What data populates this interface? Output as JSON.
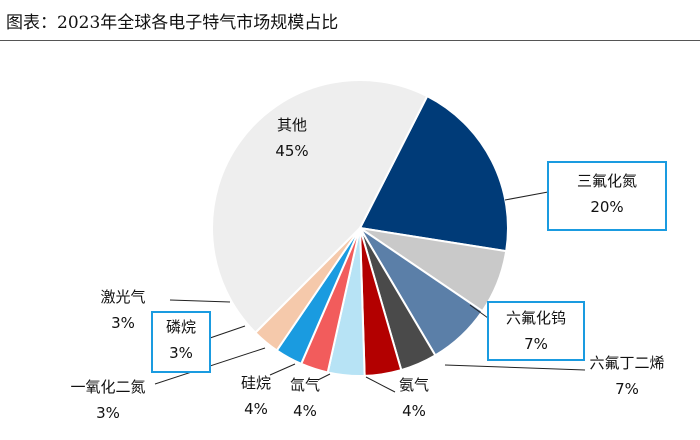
{
  "title": "图表：2023年全球各电子特气市场规模占比",
  "chart_data": {
    "type": "pie",
    "title": "图表：2023年全球各电子特气市场规模占比",
    "slices": [
      {
        "name": "三氟化氮",
        "value": 20,
        "label": "20%",
        "color": "#003b78",
        "boxed": true
      },
      {
        "name": "六氟化钨",
        "value": 7,
        "label": "7%",
        "color": "#c9c9c9",
        "boxed": true
      },
      {
        "name": "六氟丁二烯",
        "value": 7,
        "label": "7%",
        "color": "#5b7fa8",
        "boxed": false
      },
      {
        "name": "氨气",
        "value": 4,
        "label": "4%",
        "color": "#4a4a4a",
        "boxed": false
      },
      {
        "name": "氙气",
        "value": 4,
        "label": "4%",
        "color": "#b30000",
        "boxed": false
      },
      {
        "name": "硅烷",
        "value": 4,
        "label": "4%",
        "color": "#b7e3f5",
        "boxed": false
      },
      {
        "name": "一氧化二氮",
        "value": 3,
        "label": "3%",
        "color": "#f25c5c",
        "boxed": false
      },
      {
        "name": "磷烷",
        "value": 3,
        "label": "3%",
        "color": "#1a9be0",
        "boxed": true
      },
      {
        "name": "激光气",
        "value": 3,
        "label": "3%",
        "color": "#f5c9ab",
        "boxed": false
      },
      {
        "name": "其他",
        "value": 45,
        "label": "45%",
        "color": "#eeeeee",
        "boxed": false
      }
    ]
  }
}
